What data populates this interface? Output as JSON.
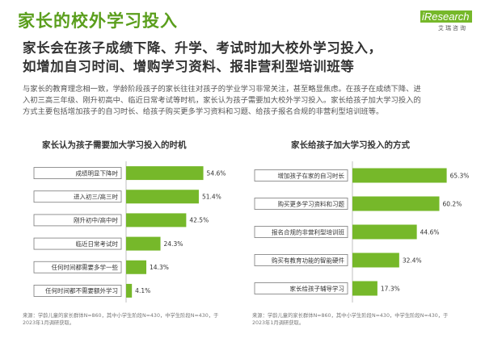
{
  "page": {
    "title": "家长的校外学习投入",
    "headline_lines": [
      "家长会在孩子成绩下降、升学、考试时加大校外学习投入，",
      "如增加自习时间、增购学习资料、报非营利型培训班等"
    ],
    "body_lines": [
      "与家长的教育理念相一致，学龄阶段孩子的家长往往对孩子的学业学习非常关注，甚至略显焦虑。在孩子在成绩下降、进",
      "入初三高三年级、刚升初高中、临近日常考试等时机，家长认为孩子需要加大校外学习投入。家长给孩子加大学习投入的",
      "方式主要包括增加孩子的自习时长、给孩子购买更多学习资料和习题、给孩子报名合规的非营利型培训班等。"
    ]
  },
  "logo": {
    "mark": "iResearch",
    "sub": "艾瑞咨询"
  },
  "chart_data": [
    {
      "type": "bar",
      "orientation": "horizontal",
      "title": "家长认为孩子需要加大学习投入的时机",
      "categories": [
        "成绩明显下降时",
        "进入初三/高三时",
        "刚升初中/高中时",
        "临近日常考试时",
        "任何时间都需要多学一些",
        "任何时间都不需要额外学习"
      ],
      "values": [
        54.6,
        51.4,
        42.5,
        24.3,
        14.3,
        4.1
      ],
      "value_labels": [
        "54.6%",
        "51.4%",
        "42.5%",
        "24.3%",
        "14.3%",
        "4.1%"
      ],
      "xlim": [
        0,
        60
      ],
      "color": "#76b82a",
      "source_lines": [
        "来源：学龄儿童的家长群体N=860，其中小学生阶段N=430，中学生阶段N=430，于",
        "2023年1月调研获取。"
      ]
    },
    {
      "type": "bar",
      "orientation": "horizontal",
      "title": "家长给孩子加大学习投入的方式",
      "categories": [
        "增加孩子在家的自习时长",
        "购买更多学习资料和习题",
        "报名合规的非营利型培训班",
        "购买有教育功能的智能硬件",
        "家长给孩子辅导学习"
      ],
      "values": [
        65.3,
        60.2,
        44.6,
        32.4,
        17.3
      ],
      "value_labels": [
        "65.3%",
        "60.2%",
        "44.6%",
        "32.4%",
        "17.3%"
      ],
      "xlim": [
        0,
        70
      ],
      "color": "#76b82a",
      "source_lines": [
        "来源：学龄儿童的家长群体N=860，其中小学生阶段N=430，中学生阶段N=430，于",
        "2023年1月调研获取。"
      ]
    }
  ]
}
